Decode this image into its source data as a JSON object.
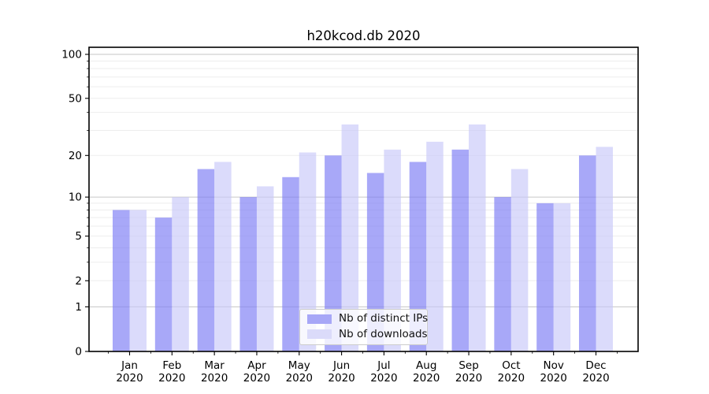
{
  "title": "h20kcod.db 2020",
  "year": "2020",
  "legend": {
    "items": [
      {
        "label": "Nb of distinct IPs",
        "color": "#a7a7f7"
      },
      {
        "label": "Nb of downloads",
        "color": "#dbdbfa"
      }
    ]
  },
  "chart_data": {
    "type": "bar",
    "title": "h20kcod.db 2020",
    "categories": [
      "Jan 2020",
      "Feb 2020",
      "Mar 2020",
      "Apr 2020",
      "May 2020",
      "Jun 2020",
      "Jul 2020",
      "Aug 2020",
      "Sep 2020",
      "Oct 2020",
      "Nov 2020",
      "Dec 2020"
    ],
    "months": [
      "Jan",
      "Feb",
      "Mar",
      "Apr",
      "May",
      "Jun",
      "Jul",
      "Aug",
      "Sep",
      "Oct",
      "Nov",
      "Dec"
    ],
    "year": "2020",
    "series": [
      {
        "name": "Nb of distinct IPs",
        "color": "#a7a7f7",
        "fill": "rgba(125,125,244,0.67)",
        "values": [
          8,
          7,
          16,
          10,
          14,
          20,
          15,
          18,
          22,
          10,
          9,
          20
        ]
      },
      {
        "name": "Nb of downloads",
        "color": "#dbdbfa",
        "fill": "rgba(198,198,248,0.64)",
        "values": [
          8,
          10,
          18,
          12,
          21,
          33,
          22,
          25,
          33,
          16,
          9,
          23
        ]
      }
    ],
    "xlabel": "",
    "ylabel": "",
    "yscale": "log1p",
    "ylim": [
      0,
      113
    ],
    "ytick_labels": [
      "0",
      "1",
      "2",
      "5",
      "10",
      "20",
      "50",
      "100"
    ],
    "yticks_labeled": [
      0,
      1,
      2,
      5,
      10,
      20,
      50,
      100
    ],
    "gridlines_major": [
      1,
      10,
      100
    ],
    "gridlines_minor": [
      2,
      3,
      4,
      5,
      6,
      7,
      8,
      9,
      20,
      30,
      40,
      50,
      60,
      70,
      80,
      90
    ],
    "grid": true,
    "legend_position": "lower-center",
    "colors": {
      "grid_major": "#c6c6c6",
      "grid_minor": "#ededed",
      "spine": "#000000",
      "text": "#000000"
    }
  }
}
